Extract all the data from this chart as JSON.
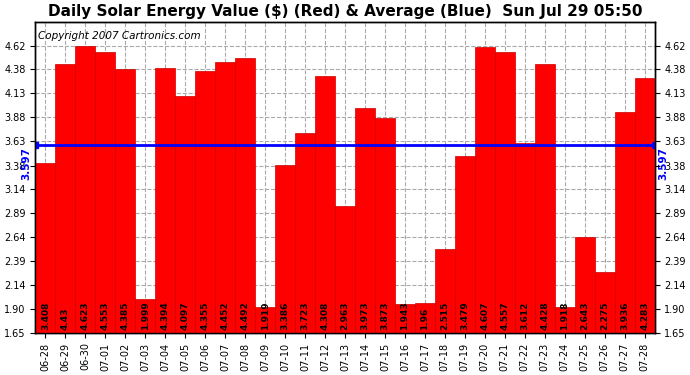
{
  "title": "Daily Solar Energy Value ($) (Red) & Average (Blue)  Sun Jul 29 05:50",
  "copyright": "Copyright 2007 Cartronics.com",
  "categories": [
    "06-28",
    "06-29",
    "06-30",
    "07-01",
    "07-02",
    "07-03",
    "07-04",
    "07-05",
    "07-06",
    "07-07",
    "07-08",
    "07-09",
    "07-10",
    "07-11",
    "07-12",
    "07-13",
    "07-14",
    "07-15",
    "07-16",
    "07-17",
    "07-18",
    "07-19",
    "07-20",
    "07-21",
    "07-22",
    "07-23",
    "07-24",
    "07-25",
    "07-26",
    "07-27",
    "07-28"
  ],
  "values": [
    3.408,
    4.43,
    4.623,
    4.553,
    4.385,
    1.999,
    4.394,
    4.097,
    4.355,
    4.452,
    4.492,
    1.919,
    3.386,
    3.723,
    4.308,
    2.963,
    3.973,
    3.873,
    1.943,
    1.96,
    2.515,
    3.479,
    4.607,
    4.557,
    3.612,
    4.428,
    1.918,
    2.643,
    2.275,
    3.936,
    4.283
  ],
  "average": 3.597,
  "bar_color": "#ff0000",
  "avg_line_color": "#0000ff",
  "background_color": "#ffffff",
  "plot_bg_color": "#ffffff",
  "grid_color": "#aaaaaa",
  "ylim_min": 1.65,
  "ylim_max": 4.87,
  "yticks": [
    1.65,
    1.9,
    2.14,
    2.39,
    2.64,
    2.89,
    3.14,
    3.38,
    3.63,
    3.88,
    4.13,
    4.38,
    4.62
  ],
  "title_fontsize": 11,
  "tick_fontsize": 7,
  "bar_label_fontsize": 6.5,
  "copyright_fontsize": 7.5,
  "avg_label_fontsize": 7.5
}
